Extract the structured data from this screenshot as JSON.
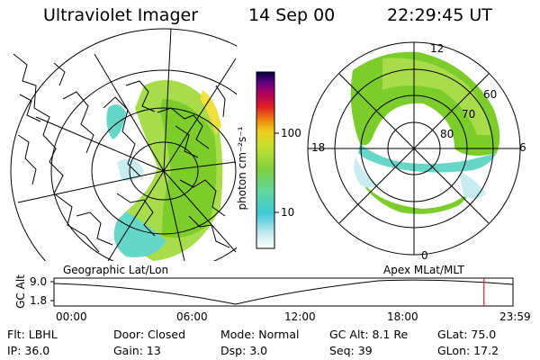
{
  "header": {
    "title": "Ultraviolet Imager",
    "date": "14 Sep 00",
    "time": "22:29:45 UT"
  },
  "colorbar": {
    "label": "photon cm⁻²s⁻¹",
    "ticks": [
      "100",
      "10"
    ]
  },
  "left_map": {
    "label": "Geographic Lat/Lon",
    "colors": {
      "land": "#000000",
      "aurora_high": "#7ccc2a",
      "aurora_mid": "#a8dc4a",
      "aurora_low": "#66d6c8",
      "edge": "#f0e040"
    }
  },
  "right_map": {
    "label": "Apex  MLat/MLT",
    "mlt_labels": {
      "top": "12",
      "left": "18",
      "right": "6",
      "bottom": "0"
    },
    "lat_labels": [
      "60",
      "70",
      "80"
    ]
  },
  "altitude": {
    "axis_label": "GC Alt",
    "y_ticks": [
      "9.0",
      "1.8"
    ],
    "x_ticks": [
      "00:00",
      "06:00",
      "12:00",
      "18:00",
      "23:59"
    ],
    "marker_color": "#e02020",
    "current_time_fraction": 0.9368
  },
  "info": {
    "filter": "Flt: LBHL",
    "ip": "IP: 36.0",
    "door": "Door: Closed",
    "gain": "Gain: 13",
    "mode": "Mode: Normal",
    "dsp": "Dsp:    3.0",
    "gc_alt": "GC Alt: 8.1 Re",
    "seq": "Seq: 39",
    "glat": "GLat:    75.0",
    "glon": "GLon:    17.2"
  }
}
